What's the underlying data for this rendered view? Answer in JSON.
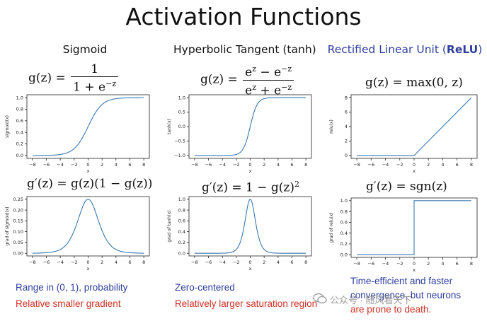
{
  "title": "Activation Functions",
  "columns": {
    "sigmoid": {
      "title": "Sigmoid"
    },
    "tanh": {
      "title": "Hyperbolic Tangent (tanh)"
    },
    "relu": {
      "title_prefix": "Rectified Linear Unit (",
      "title_bold": "ReLU",
      "title_suffix": ")"
    }
  },
  "formulas": {
    "sigmoid": {
      "lhs": "g(z) =",
      "num": "1",
      "den": "1 + e",
      "den_sup": "−z"
    },
    "tanh": {
      "lhs": "g(z) =",
      "num": "e",
      "num_sup1": "z",
      "num_mid": " − e",
      "num_sup2": "−z",
      "den": "e",
      "den_sup1": "z",
      "den_mid": " + e",
      "den_sup2": "−z"
    },
    "relu": {
      "text": "g(z) = max(0, z)"
    },
    "sigmoid_grad": {
      "text": "g′(z) = g(z)(1 − g(z))"
    },
    "tanh_grad": {
      "text": "g′(z) = 1 − g(z)",
      "sup": "2"
    },
    "relu_grad": {
      "text": "g′(z) = sgn(z)"
    }
  },
  "notes": {
    "sigmoid_1": "Range in (0, 1), probability",
    "sigmoid_2": "Relative smaller gradient",
    "tanh_1": "Zero-centered",
    "tanh_2": "Relatively larger saturation region",
    "relu_1": "Time-efficient and faster",
    "relu_2": "convergence, but neurons",
    "relu_3": "are prone to death."
  },
  "watermark": "公众号 · 随风看天下",
  "line_color": "#3b78b0",
  "chart_data": [
    {
      "id": "sigmoid",
      "type": "line",
      "function": "sigmoid",
      "xlabel": "x",
      "ylabel": "sigmoid(x)",
      "xlim": [
        -8,
        8
      ],
      "ylim": [
        0,
        1
      ],
      "xticks": [
        -8,
        -6,
        -4,
        -2,
        0,
        2,
        4,
        6,
        8
      ],
      "xticklabels": [
        "−8",
        "−6",
        "−4",
        "−2",
        "0",
        "2",
        "4",
        "6",
        "8"
      ],
      "yticks": [
        0,
        0.2,
        0.4,
        0.6,
        0.8,
        1.0
      ],
      "yticklabels": [
        "0.0",
        "0.2",
        "0.4",
        "0.6",
        "0.8",
        "1.0"
      ]
    },
    {
      "id": "tanh",
      "type": "line",
      "function": "tanh",
      "xlabel": "x",
      "ylabel": "tanh(x)",
      "xlim": [
        -8,
        8
      ],
      "ylim": [
        -1,
        1
      ],
      "xticks": [
        -8,
        -6,
        -4,
        -2,
        0,
        2,
        4,
        6,
        8
      ],
      "xticklabels": [
        "−8",
        "−6",
        "−4",
        "−2",
        "0",
        "2",
        "4",
        "6",
        "8"
      ],
      "yticks": [
        -1.0,
        -0.5,
        0,
        0.5,
        1.0
      ],
      "yticklabels": [
        "−1.0",
        "−0.5",
        "0.0",
        "0.5",
        "1.0"
      ]
    },
    {
      "id": "relu",
      "type": "line",
      "function": "relu",
      "xlabel": "x",
      "ylabel": "relu(x)",
      "xlim": [
        -8,
        8
      ],
      "ylim": [
        0,
        8
      ],
      "xticks": [
        -8,
        -6,
        -4,
        -2,
        0,
        2,
        4,
        6,
        8
      ],
      "xticklabels": [
        "−8",
        "−6",
        "−4",
        "−2",
        "0",
        "2",
        "4",
        "6",
        "8"
      ],
      "yticks": [
        0,
        2,
        4,
        6,
        8
      ],
      "yticklabels": [
        "0",
        "2",
        "4",
        "6",
        "8"
      ]
    },
    {
      "id": "sigmoid_grad",
      "type": "line",
      "function": "sigmoid_grad",
      "xlabel": "x",
      "ylabel": "grad of sigmoid(x)",
      "xlim": [
        -8,
        8
      ],
      "ylim": [
        0,
        0.25
      ],
      "xticks": [
        -8,
        -6,
        -4,
        -2,
        0,
        2,
        4,
        6,
        8
      ],
      "xticklabels": [
        "−8",
        "−6",
        "−4",
        "−2",
        "0",
        "2",
        "4",
        "6",
        "8"
      ],
      "yticks": [
        0,
        0.05,
        0.1,
        0.15,
        0.2,
        0.25
      ],
      "yticklabels": [
        "0.00",
        "0.05",
        "0.10",
        "0.15",
        "0.20",
        "0.25"
      ]
    },
    {
      "id": "tanh_grad",
      "type": "line",
      "function": "tanh_grad",
      "xlabel": "x",
      "ylabel": "grad of tanh(x)",
      "xlim": [
        -8,
        8
      ],
      "ylim": [
        0,
        1
      ],
      "xticks": [
        -8,
        -6,
        -4,
        -2,
        0,
        2,
        4,
        6,
        8
      ],
      "xticklabels": [
        "−8",
        "−6",
        "−4",
        "−2",
        "0",
        "2",
        "4",
        "6",
        "8"
      ],
      "yticks": [
        0,
        0.2,
        0.4,
        0.6,
        0.8,
        1.0
      ],
      "yticklabels": [
        "0.0",
        "0.2",
        "0.4",
        "0.6",
        "0.8",
        "1.0"
      ]
    },
    {
      "id": "relu_grad",
      "type": "line",
      "function": "relu_grad",
      "xlabel": "x",
      "ylabel": "grad of relu(x)",
      "xlim": [
        -8,
        8
      ],
      "ylim": [
        0,
        1
      ],
      "xticks": [
        -8,
        -6,
        -4,
        -2,
        0,
        2,
        4,
        6,
        8
      ],
      "xticklabels": [
        "−8",
        "−6",
        "−4",
        "−2",
        "0",
        "2",
        "4",
        "6",
        "8"
      ],
      "yticks": [
        0,
        0.2,
        0.4,
        0.6,
        0.8,
        1.0
      ],
      "yticklabels": [
        "0.0",
        "0.2",
        "0.4",
        "0.6",
        "0.8",
        "1.0"
      ]
    }
  ]
}
